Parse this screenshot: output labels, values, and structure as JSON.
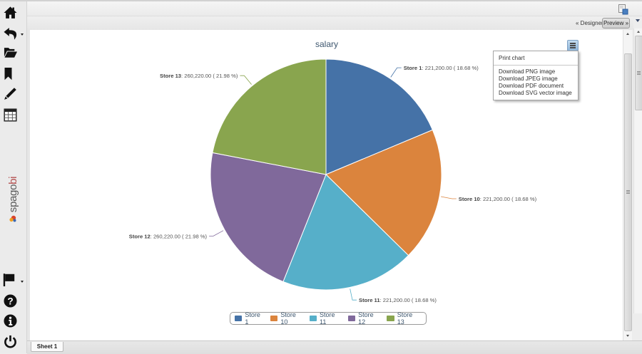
{
  "sidebar": {
    "top_icons": [
      {
        "label": "Home",
        "icon": "home-icon"
      },
      {
        "label": "Back",
        "icon": "undo-arrow-icon",
        "has_dropdown": true
      },
      {
        "label": "Open documents",
        "icon": "folder-open-icon"
      },
      {
        "label": "Bookmarks",
        "icon": "bookmark-icon"
      },
      {
        "label": "Edit",
        "icon": "pencil-icon"
      },
      {
        "label": "Table",
        "icon": "table-icon"
      }
    ],
    "logo": {
      "main": "spago",
      "accent": "bi"
    },
    "bottom_icons": [
      {
        "label": "Language",
        "icon": "flag-icon",
        "has_dropdown": true
      },
      {
        "label": "Help",
        "icon": "help-icon"
      },
      {
        "label": "Info",
        "icon": "info-icon"
      },
      {
        "label": "Logout",
        "icon": "power-icon"
      }
    ]
  },
  "toolbar": {
    "export_icon": "export-icon",
    "designer_label": "« Designer",
    "preview_label": "Preview »"
  },
  "chart_menu": {
    "button_icon": "hamburger-menu-icon",
    "print_label": "Print chart",
    "download_items": [
      "Download PNG image",
      "Download JPEG image",
      "Download PDF document",
      "Download SVG vector image"
    ]
  },
  "sheets": {
    "tabs": [
      {
        "label": "Sheet 1",
        "active": true
      }
    ]
  },
  "chart_data": {
    "type": "pie",
    "title": "salary",
    "categories": [
      "Store 1",
      "Store 10",
      "Store 11",
      "Store 12",
      "Store 13"
    ],
    "values": [
      221200.0,
      221200.0,
      221200.0,
      260220.0,
      260220.0
    ],
    "percentages": [
      18.68,
      18.68,
      18.68,
      21.98,
      21.98
    ],
    "colors": [
      "#4572A7",
      "#DB843D",
      "#56AFC9",
      "#80699B",
      "#89A54E"
    ],
    "data_labels": [
      {
        "name": "Store 1",
        "text": ": 221,200.00 ( 18.68 %)"
      },
      {
        "name": "Store 10",
        "text": ": 221,200.00 ( 18.68 %)"
      },
      {
        "name": "Store 11",
        "text": ": 221,200.00 ( 18.68 %)"
      },
      {
        "name": "Store 12",
        "text": ": 260,220.00 ( 21.98 %)"
      },
      {
        "name": "Store 13",
        "text": ": 260,220.00 ( 21.98 %)"
      }
    ],
    "legend": {
      "position": "bottom",
      "entries": [
        "Store 1",
        "Store 10",
        "Store 11",
        "Store 12",
        "Store 13"
      ]
    },
    "start_angle": 0,
    "direction": "clockwise"
  }
}
